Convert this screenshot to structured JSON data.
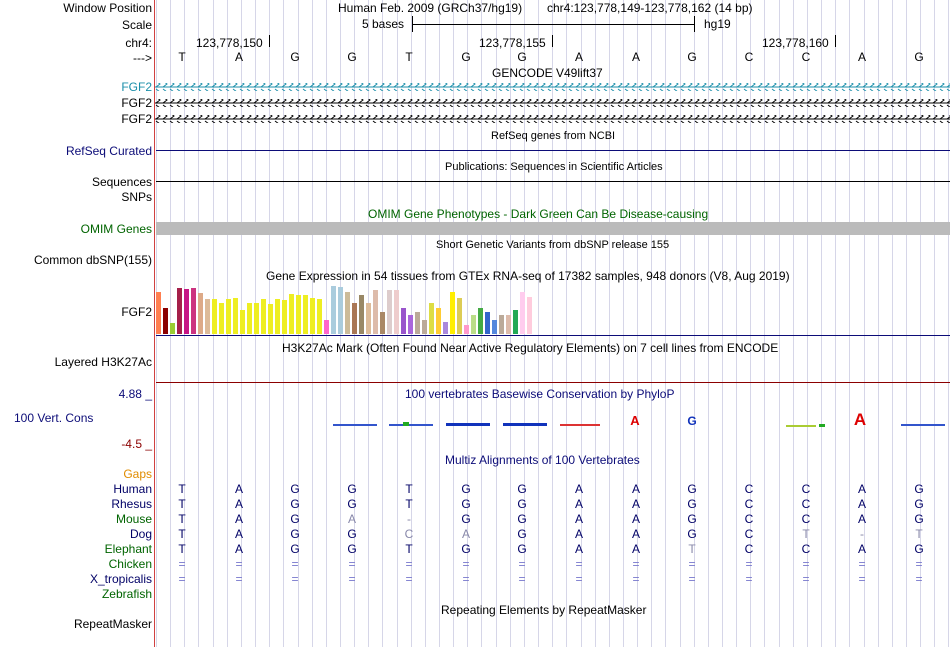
{
  "header": {
    "window_position_label": "Window Position",
    "scale_label": "Scale",
    "chrom_label": "chr4:",
    "strand_label": "--->",
    "assembly_title": "Human Feb. 2009 (GRCh37/hg19)",
    "position_title": "chr4:123,778,149-123,778,162 (14 bp)",
    "scale_text": "5 bases",
    "db_text": "hg19",
    "ticks": [
      "123,778,150",
      "123,778,155",
      "123,778,160"
    ]
  },
  "sequence": [
    "T",
    "A",
    "G",
    "G",
    "T",
    "G",
    "G",
    "A",
    "A",
    "G",
    "C",
    "C",
    "A",
    "G"
  ],
  "tracks": {
    "gencode": {
      "title": "GENCODE V49lift37",
      "genes": [
        "FGF2",
        "FGF2",
        "FGF2"
      ],
      "colors": [
        "#1b8faa",
        "#000000",
        "#000000"
      ]
    },
    "refseq": {
      "title": "RefSeq genes from NCBI",
      "label": "RefSeq Curated"
    },
    "pubs": {
      "title": "Publications: Sequences in Scientific Articles",
      "label1": "Sequences",
      "label2": "SNPs"
    },
    "omim": {
      "title": "OMIM Gene Phenotypes - Dark Green Can Be Disease-causing",
      "label": "OMIM Genes"
    },
    "dbsnp": {
      "title": "Short Genetic Variants from dbSNP release 155",
      "label": "Common dbSNP(155)"
    },
    "gtex": {
      "title": "Gene Expression in 54 tissues from GTEx RNA-seq of 17382 samples, 948 donors (V8, Aug 2019)",
      "label": "FGF2",
      "levels": [
        0.88,
        0.55,
        0.22,
        0.95,
        0.93,
        0.95,
        0.86,
        0.72,
        0.72,
        0.64,
        0.72,
        0.75,
        0.5,
        0.64,
        0.64,
        0.72,
        0.62,
        0.72,
        0.7,
        0.83,
        0.82,
        0.82,
        0.76,
        0.72,
        0.3,
        1.0,
        0.97,
        0.88,
        0.65,
        0.82,
        0.64,
        0.92,
        0.45,
        0.92,
        0.92,
        0.55,
        0.4,
        0.45,
        0.3,
        0.65,
        0.55,
        0.25,
        0.88,
        0.75,
        0.18,
        0.4,
        0.55,
        0.45,
        0.3,
        0.4,
        0.4,
        0.5,
        0.88,
        0.78
      ],
      "colors": [
        "#ff7f50",
        "#8b0000",
        "#9acd32",
        "#a5204a",
        "#c71585",
        "#cc3380",
        "#ddaa88",
        "#ddbb99",
        "#eeee22",
        "#eeee22",
        "#eeee22",
        "#eeee22",
        "#eeee22",
        "#eeee22",
        "#eeee22",
        "#eeee22",
        "#eeee22",
        "#eeee22",
        "#eeee22",
        "#eeee22",
        "#eeee22",
        "#eeee22",
        "#eeee22",
        "#eeee22",
        "#ff66cc",
        "#aaccdd",
        "#aaccdd",
        "#ccbb99",
        "#aa7755",
        "#998866",
        "#ddbb99",
        "#ddbbaa",
        "#aa8866",
        "#ddcccc",
        "#eecccc",
        "#9955cc",
        "#aa66dd",
        "#bbaa99",
        "#bbaa99",
        "#dddd44",
        "#ffcc33",
        "#aa88dd",
        "#ffee00",
        "#ddcc55",
        "#ff99cc",
        "#bbdd88",
        "#44aa44",
        "#3366cc",
        "#5588dd",
        "#bbaa99",
        "#ddbbaa",
        "#22aa55",
        "#ffccee",
        "#ffccdd"
      ]
    },
    "h3k27ac": {
      "title": "H3K27Ac Mark (Often Found Near Active Regulatory Elements) on 7 cell lines from ENCODE",
      "label": "Layered H3K27Ac"
    },
    "phylop": {
      "title": "100 vertebrates Basewise Conservation by PhyloP",
      "label": "100 Vert. Cons",
      "max": "4.88 _",
      "min": "-4.5 _"
    },
    "multiz": {
      "title": "Multiz Alignments of 100 Vertebrates",
      "gaps_label": "Gaps",
      "species": [
        {
          "name": "Human",
          "color": "#000066",
          "bases": [
            "T",
            "A",
            "G",
            "G",
            "T",
            "G",
            "G",
            "A",
            "A",
            "G",
            "C",
            "C",
            "A",
            "G"
          ]
        },
        {
          "name": "Rhesus",
          "color": "#000066",
          "bases": [
            "T",
            "A",
            "G",
            "G",
            "T",
            "G",
            "G",
            "A",
            "A",
            "G",
            "C",
            "C",
            "A",
            "G"
          ]
        },
        {
          "name": "Mouse",
          "color": "#006400",
          "bases": [
            "T",
            "A",
            "G",
            "A",
            "-",
            "G",
            "G",
            "A",
            "A",
            "G",
            "C",
            "C",
            "A",
            "G"
          ]
        },
        {
          "name": "Dog",
          "color": "#000066",
          "bases": [
            "T",
            "A",
            "G",
            "G",
            "C",
            "A",
            "G",
            "A",
            "A",
            "G",
            "C",
            "T",
            "-",
            "T"
          ]
        },
        {
          "name": "Elephant",
          "color": "#006400",
          "bases": [
            "T",
            "A",
            "G",
            "G",
            "T",
            "G",
            "G",
            "A",
            "A",
            "T",
            "C",
            "C",
            "A",
            "G"
          ]
        },
        {
          "name": "Chicken",
          "color": "#006400",
          "bases": [
            "=",
            "=",
            "=",
            "=",
            "=",
            "=",
            "=",
            "=",
            "=",
            "=",
            "=",
            "=",
            "=",
            "="
          ]
        },
        {
          "name": "X_tropicalis",
          "color": "#000066",
          "bases": [
            "=",
            "=",
            "=",
            "=",
            "=",
            "=",
            "=",
            "=",
            "=",
            "=",
            "=",
            "=",
            "=",
            "="
          ]
        },
        {
          "name": "Zebrafish",
          "color": "#006400",
          "bases": [
            "",
            "",
            "",
            "",
            "",
            "",
            "",
            "",
            "",
            "",
            "",
            "",
            "",
            ""
          ]
        }
      ]
    },
    "rmsk": {
      "title": "Repeating Elements by RepeatMasker",
      "label": "RepeatMasker"
    }
  },
  "colors": {
    "navy": "#0c0c78",
    "green": "#006400",
    "teal": "#1b8faa",
    "omim_gray": "#bbbbbb",
    "h3k_line": "#8b0000",
    "gaps": "#e08c00"
  }
}
